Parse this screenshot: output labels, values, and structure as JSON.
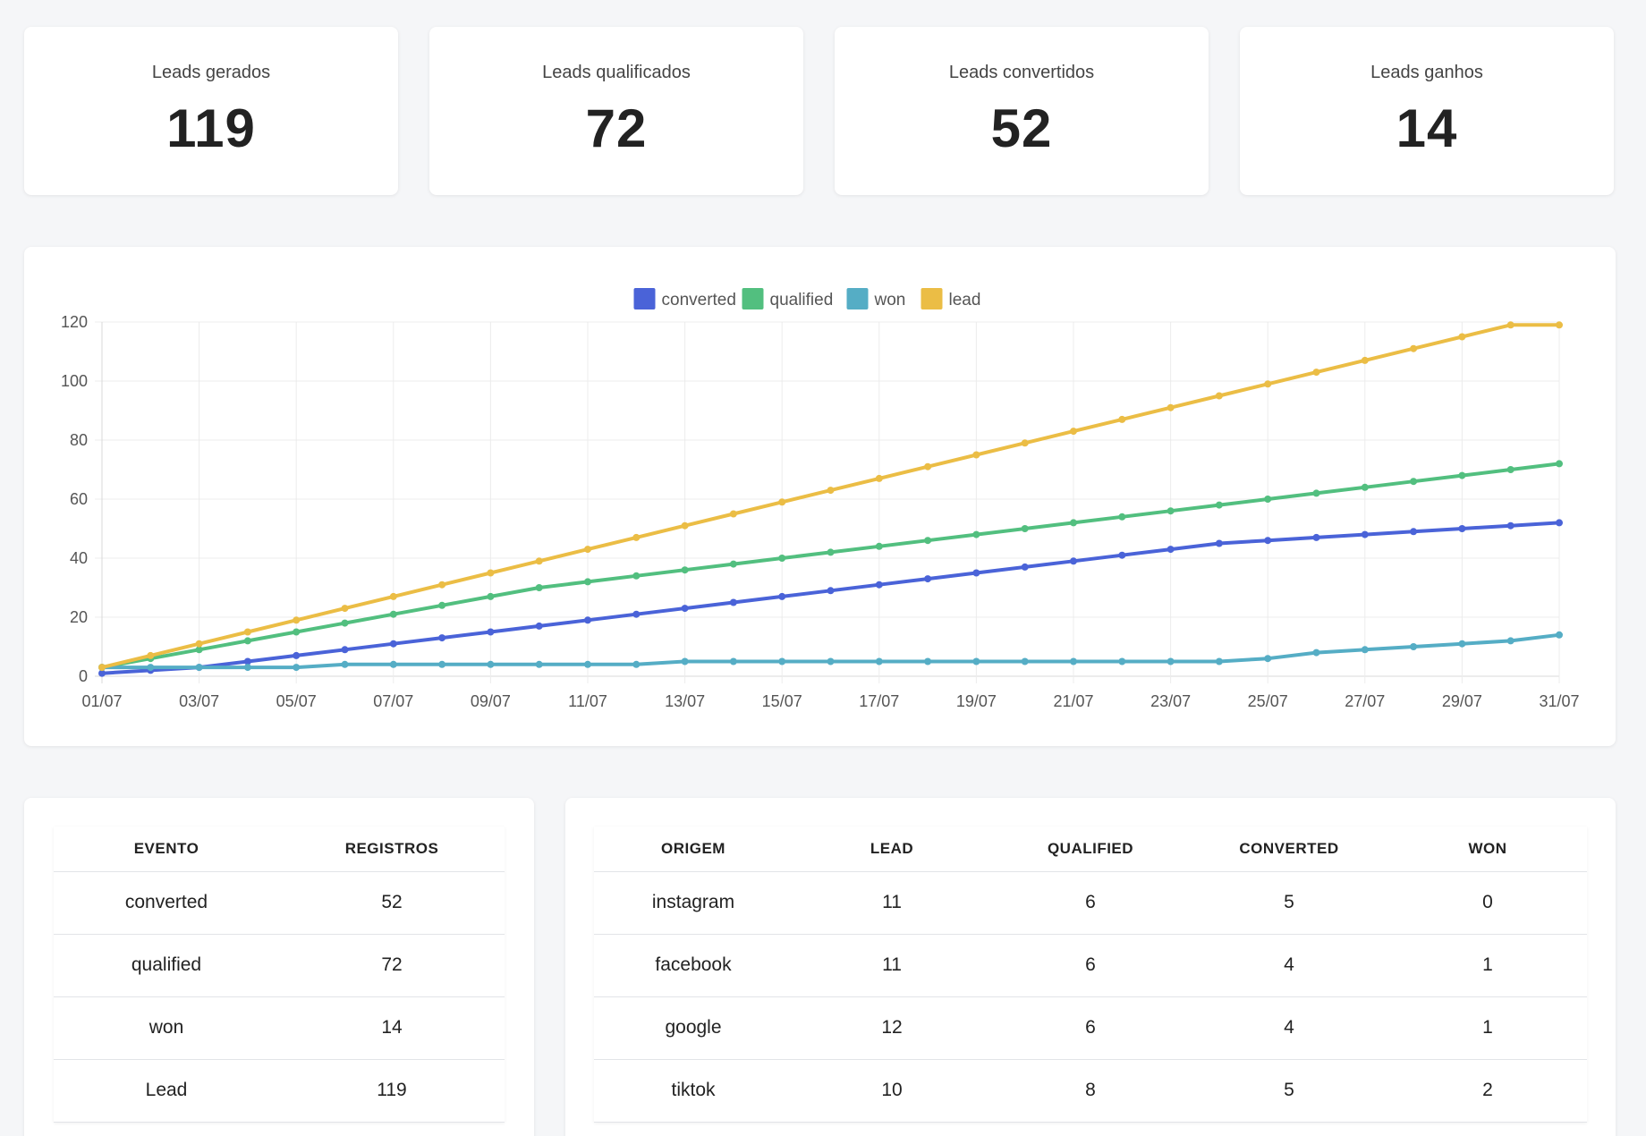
{
  "kpis": [
    {
      "label": "Leads gerados",
      "value": "119"
    },
    {
      "label": "Leads qualificados",
      "value": "72"
    },
    {
      "label": "Leads convertidos",
      "value": "52"
    },
    {
      "label": "Leads ganhos",
      "value": "14"
    }
  ],
  "chart_data": {
    "type": "line",
    "x": [
      "01/07",
      "02/07",
      "03/07",
      "04/07",
      "05/07",
      "06/07",
      "07/07",
      "08/07",
      "09/07",
      "10/07",
      "11/07",
      "12/07",
      "13/07",
      "14/07",
      "15/07",
      "16/07",
      "17/07",
      "18/07",
      "19/07",
      "20/07",
      "21/07",
      "22/07",
      "23/07",
      "24/07",
      "25/07",
      "26/07",
      "27/07",
      "28/07",
      "29/07",
      "30/07",
      "31/07"
    ],
    "x_tick_labels": [
      "01/07",
      "03/07",
      "05/07",
      "07/07",
      "09/07",
      "11/07",
      "13/07",
      "15/07",
      "17/07",
      "19/07",
      "21/07",
      "23/07",
      "25/07",
      "27/07",
      "29/07",
      "31/07"
    ],
    "ylim": [
      0,
      120
    ],
    "y_ticks": [
      "0",
      "20",
      "40",
      "60",
      "80",
      "100",
      "120"
    ],
    "grid": true,
    "legend_position": "top-center",
    "series": [
      {
        "name": "converted",
        "color": "#4a63d8",
        "values": [
          1,
          2,
          3,
          5,
          7,
          9,
          11,
          13,
          15,
          17,
          19,
          21,
          23,
          25,
          27,
          29,
          31,
          33,
          35,
          37,
          39,
          41,
          43,
          45,
          46,
          47,
          48,
          49,
          50,
          51,
          52
        ]
      },
      {
        "name": "qualified",
        "color": "#52bf7f",
        "values": [
          3,
          6,
          9,
          12,
          15,
          18,
          21,
          24,
          27,
          30,
          32,
          34,
          36,
          38,
          40,
          42,
          44,
          46,
          48,
          50,
          52,
          54,
          56,
          58,
          60,
          62,
          64,
          66,
          68,
          70,
          72
        ]
      },
      {
        "name": "won",
        "color": "#55adc5",
        "values": [
          3,
          3,
          3,
          3,
          3,
          4,
          4,
          4,
          4,
          4,
          4,
          4,
          5,
          5,
          5,
          5,
          5,
          5,
          5,
          5,
          5,
          5,
          5,
          5,
          6,
          8,
          9,
          10,
          11,
          12,
          14
        ]
      },
      {
        "name": "lead",
        "color": "#ebbd45",
        "values": [
          3,
          7,
          11,
          15,
          19,
          23,
          27,
          31,
          35,
          39,
          43,
          47,
          51,
          55,
          59,
          63,
          67,
          71,
          75,
          79,
          83,
          87,
          91,
          95,
          99,
          103,
          107,
          111,
          115,
          119,
          119
        ]
      }
    ]
  },
  "events_table": {
    "headers": [
      "Evento",
      "Registros"
    ],
    "rows": [
      [
        "converted",
        "52"
      ],
      [
        "qualified",
        "72"
      ],
      [
        "won",
        "14"
      ],
      [
        "Lead",
        "119"
      ]
    ]
  },
  "origins_table": {
    "headers": [
      "Origem",
      "Lead",
      "Qualified",
      "Converted",
      "Won"
    ],
    "rows": [
      [
        "instagram",
        "11",
        "6",
        "5",
        "0"
      ],
      [
        "facebook",
        "11",
        "6",
        "4",
        "1"
      ],
      [
        "google",
        "12",
        "6",
        "4",
        "1"
      ],
      [
        "tiktok",
        "10",
        "8",
        "5",
        "2"
      ]
    ]
  }
}
